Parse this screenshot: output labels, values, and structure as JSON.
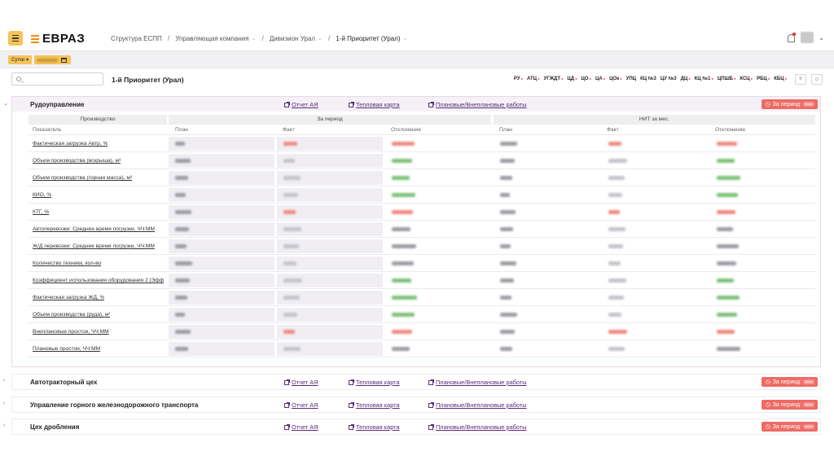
{
  "header": {
    "logo_text": "ЕВРАЗ",
    "breadcrumb": [
      "Структура ЕСПП",
      "Управляющая компания",
      "Дивизион Урал",
      "1-й Приоритет (Урал)"
    ]
  },
  "filters": {
    "period": "Сутки"
  },
  "page": {
    "title": "1-й Приоритет (Урал)",
    "tags": [
      {
        "label": "РУ",
        "alert": true
      },
      {
        "label": "АТЦ",
        "alert": true
      },
      {
        "label": "УГЖДТ",
        "alert": true
      },
      {
        "label": "ЦД",
        "alert": true
      },
      {
        "label": "ЦО",
        "alert": true
      },
      {
        "label": "ЦА",
        "alert": true
      },
      {
        "label": "ЦОк",
        "alert": true
      },
      {
        "label": "УПЦ",
        "alert": false
      },
      {
        "label": "КЦ №3",
        "alert": false
      },
      {
        "label": "ЦУ №3",
        "alert": false
      },
      {
        "label": "ДЦ",
        "alert": true
      },
      {
        "label": "КЦ №1",
        "alert": true
      },
      {
        "label": "ЦПШБ",
        "alert": true
      },
      {
        "label": "КСЦ",
        "alert": true
      },
      {
        "label": "РБЦ",
        "alert": true
      },
      {
        "label": "КБЦ",
        "alert": true
      }
    ]
  },
  "links": {
    "report": "Отчет АЯ",
    "heatmap": "Тепловая карта",
    "works": "Плановые/Внеплановые работы",
    "period_badge": "За период:"
  },
  "sections": [
    {
      "title": "Рудоуправление",
      "expanded": true
    },
    {
      "title": "Автотракторный цех",
      "expanded": false
    },
    {
      "title": "Управление горного железнодорожного транспорта",
      "expanded": false
    },
    {
      "title": "Цех дробления",
      "expanded": false
    }
  ],
  "table": {
    "group_production": "Производство",
    "group_period": "За период",
    "group_month": "НИТ за мес.",
    "col_indicator": "Показатель",
    "col_plan": "План",
    "col_fact": "Факт",
    "col_dev": "Отклонение",
    "rows": [
      {
        "label": "Фактическая загрузка Автр, %",
        "dev": "red"
      },
      {
        "label": "Объем производства (вскрыша), м³",
        "dev": "green"
      },
      {
        "label": "Объем производства (горная масса), м³",
        "dev": "green"
      },
      {
        "label": "КИО, %",
        "dev": "green"
      },
      {
        "label": "КТГ, %",
        "dev": "red"
      },
      {
        "label": "Автоперевозки: Среднее время погрузки, ЧЧ:ММ",
        "dev": "gray"
      },
      {
        "label": "Ж/Д перевозки: Среднее время погрузки, ЧЧ:ММ",
        "dev": "gray"
      },
      {
        "label": "Количество техники, кол-во",
        "dev": "gray"
      },
      {
        "label": "Коэффициент использования оборудования 2 (Эфф",
        "dev": "green"
      },
      {
        "label": "Фактическая загрузка ЖД, %",
        "dev": "green"
      },
      {
        "label": "Объем производства (руда), м³",
        "dev": "green"
      },
      {
        "label": "Внеплановые простои, ЧЧ:ММ",
        "dev": "red"
      },
      {
        "label": "Плановые простои, ЧЧ:ММ",
        "dev": "gray"
      }
    ]
  },
  "colors": {
    "accent": "#f5c35a",
    "brand_orange": "#f08a1c",
    "link": "#5a2b7a",
    "badge_red": "#ee6a64"
  }
}
